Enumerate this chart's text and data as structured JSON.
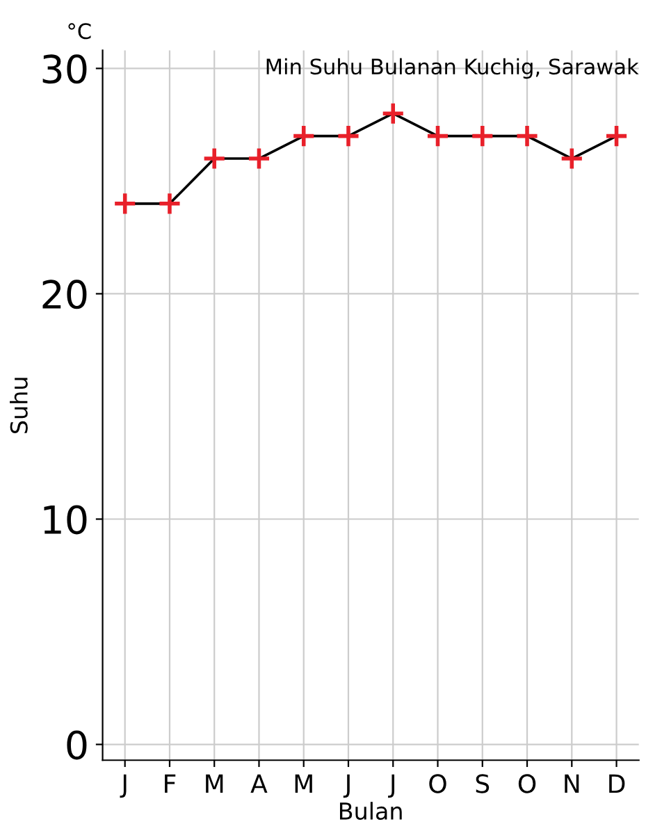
{
  "chart_data": {
    "type": "line",
    "title": "Min Suhu Bulanan Kuchig, Sarawak",
    "xlabel": "Bulan",
    "ylabel": "Suhu",
    "annotations": [
      "°C"
    ],
    "categories": [
      "J",
      "F",
      "M",
      "A",
      "M",
      "J",
      "J",
      "O",
      "S",
      "O",
      "N",
      "D"
    ],
    "series": [
      {
        "color": "#000000",
        "colors": [
          "#e8202a",
          "#e8202a",
          "#e8202a",
          "#e8202a",
          "#e8202a",
          "#e8202a",
          "#e8202a",
          "#e8202a",
          "#e8202a",
          "#e8202a",
          "#e8202a",
          "#e8202a"
        ],
        "values": [
          24,
          24,
          26,
          26,
          27,
          27,
          28,
          27,
          27,
          27,
          26,
          27
        ]
      }
    ],
    "ylim": [
      -0.7,
      30.8
    ],
    "yticks": [
      0,
      10,
      20,
      30
    ],
    "grid": true,
    "marker": "cross",
    "line_style": "solid"
  }
}
